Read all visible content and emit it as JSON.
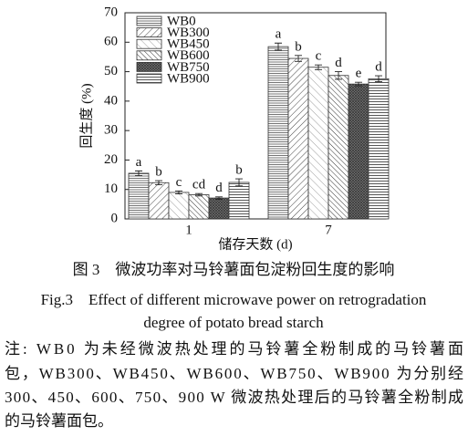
{
  "chart_data": {
    "type": "bar",
    "xlabel": "储存天数 (d)",
    "ylabel": "回生度 (%)",
    "categories": [
      "1",
      "7"
    ],
    "series": [
      {
        "name": "WB0",
        "pattern": "hlines-dense",
        "values": [
          15.5,
          58.5
        ],
        "errors": [
          0.8,
          1.2
        ],
        "letters": [
          "a",
          "a"
        ]
      },
      {
        "name": "WB300",
        "pattern": "diag-fwd",
        "values": [
          12.3,
          54.5
        ],
        "errors": [
          0.7,
          1.0
        ],
        "letters": [
          "b",
          "b"
        ]
      },
      {
        "name": "WB450",
        "pattern": "diag-back-light",
        "values": [
          9,
          51.5
        ],
        "errors": [
          0.5,
          0.8
        ],
        "letters": [
          "c",
          "c"
        ]
      },
      {
        "name": "WB600",
        "pattern": "diag-back",
        "values": [
          8.2,
          48.7
        ],
        "errors": [
          0.4,
          1.3
        ],
        "letters": [
          "cd",
          "d"
        ]
      },
      {
        "name": "WB750",
        "pattern": "cross",
        "values": [
          7.1,
          45.8
        ],
        "errors": [
          0.4,
          0.6
        ],
        "letters": [
          "d",
          "e"
        ]
      },
      {
        "name": "WB900",
        "pattern": "hlines",
        "values": [
          12.4,
          47.6
        ],
        "errors": [
          1.2,
          1.0
        ],
        "letters": [
          "b",
          "d"
        ]
      }
    ],
    "ylim": [
      0,
      70
    ],
    "yticks": [
      0,
      10,
      20,
      30,
      40,
      50,
      60,
      70
    ],
    "legend": "upper-left"
  },
  "caption_cn": "图 3　微波功率对马铃薯面包淀粉回生度的影响",
  "caption_en": [
    "Fig.3　Effect of different microwave power on retrogradation",
    "degree of potato bread starch"
  ],
  "note": [
    "注: WB0 为未经微波热处理的马铃薯全粉制成的马铃薯面",
    "包，WB300、WB450、WB600、WB750、WB900 为分别经",
    "300、450、600、750、900 W 微波热处理后的马铃薯全粉制成",
    "的马铃薯面包。"
  ]
}
